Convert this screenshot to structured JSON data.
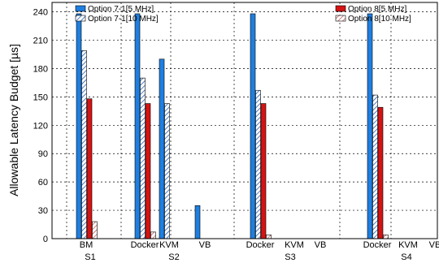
{
  "chart_data": {
    "type": "bar",
    "ylabel": "Allowable Latency Budget [µs]",
    "xlabel": "",
    "ylim": [
      0,
      250
    ],
    "yticks": [
      0,
      30,
      60,
      90,
      120,
      150,
      180,
      210,
      240
    ],
    "grid": true,
    "legend_position": "top",
    "groups": [
      "S1",
      "S2",
      "S3",
      "S4"
    ],
    "categories": [
      {
        "label": "BM",
        "group": "S1"
      },
      {
        "label": "Docker",
        "group": "S2"
      },
      {
        "label": "KVM",
        "group": "S2"
      },
      {
        "label": "VB",
        "group": "S2"
      },
      {
        "label": "Docker",
        "group": "S3"
      },
      {
        "label": "KVM",
        "group": "S3"
      },
      {
        "label": "VB",
        "group": "S3"
      },
      {
        "label": "Docker",
        "group": "S4"
      },
      {
        "label": "KVM",
        "group": "S4"
      },
      {
        "label": "VB",
        "group": "S4"
      }
    ],
    "series": [
      {
        "name": "Option 7-1[5 MHz]",
        "color": "#1f7fe0",
        "pattern": "solid",
        "values": [
          238,
          238,
          190,
          35,
          238,
          null,
          null,
          238,
          null,
          null
        ]
      },
      {
        "name": "Option 7-1[10 MHz]",
        "color": "#ffffff",
        "pattern": "hatch",
        "values": [
          199,
          170,
          143,
          null,
          157,
          null,
          null,
          152,
          null,
          null
        ]
      },
      {
        "name": "Option 8[5 MHz]",
        "color": "#d41414",
        "pattern": "solid",
        "values": [
          148,
          143,
          null,
          null,
          143,
          null,
          null,
          139,
          null,
          null
        ]
      },
      {
        "name": "Option 8[10 MHz]",
        "color": "#ffffff",
        "pattern": "hatch-light",
        "values": [
          18,
          7,
          null,
          null,
          4,
          null,
          null,
          4,
          null,
          null
        ]
      }
    ]
  }
}
